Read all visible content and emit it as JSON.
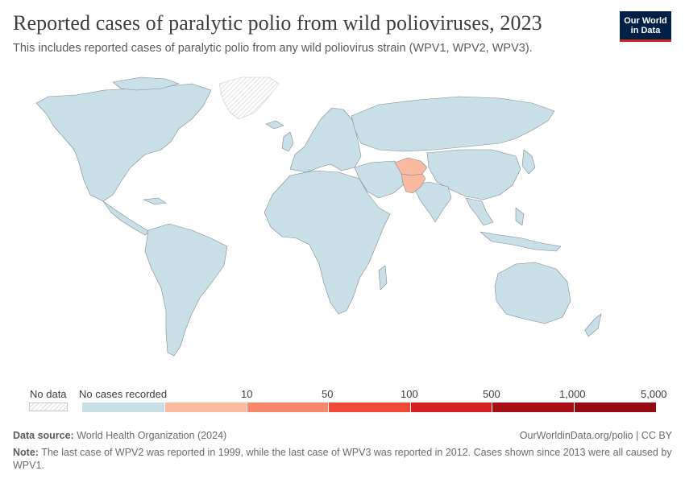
{
  "header": {
    "title": "Reported cases of paralytic polio from wild polioviruses, 2023",
    "subtitle": "This includes reported cases of paralytic polio from any wild poliovirus strain (WPV1, WPV2, WPV3).",
    "logo_line1": "Our World",
    "logo_line2": "in Data"
  },
  "legend": {
    "no_data": "No data",
    "bins": [
      {
        "label": "No cases recorded",
        "color": "#c9dfe7"
      },
      {
        "label": "10",
        "color": "#fbb9a0"
      },
      {
        "label": "50",
        "color": "#f8866a"
      },
      {
        "label": "100",
        "color": "#ee4a35"
      },
      {
        "label": "500",
        "color": "#d42020"
      },
      {
        "label": "1,000",
        "color": "#a50f15"
      }
    ],
    "last_label": "5,000"
  },
  "map": {
    "land_color": "#c9dfe7",
    "border_color": "#7f8a90",
    "no_data_color": "#e2e2e2",
    "highlighted": [
      {
        "region": "Afghanistan",
        "color": "#fbb9a0"
      },
      {
        "region": "Pakistan",
        "color": "#fbb9a0"
      }
    ]
  },
  "footer": {
    "source_label": "Data source:",
    "source_text": "World Health Organization (2024)",
    "url": "OurWorldinData.org/polio | CC BY",
    "note_label": "Note:",
    "note_text": "The last case of WPV2 was reported in 1999, while the last case of WPV3 was reported in 2012. Cases shown since 2013 were all caused by WPV1."
  }
}
